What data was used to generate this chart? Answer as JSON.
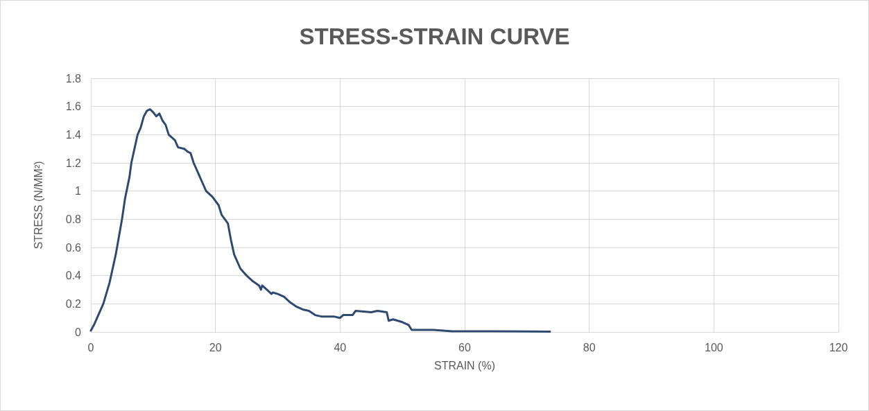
{
  "chart_data": {
    "type": "line",
    "title": "STRESS-STRAIN CURVE",
    "xlabel": "STRAIN (%)",
    "ylabel": "STRESS (N/MM²)",
    "x": [
      0,
      0.5,
      1,
      2,
      3,
      4,
      5,
      5.5,
      6.2,
      6.5,
      7,
      7.5,
      8,
      8.5,
      9,
      9.5,
      10,
      10.5,
      11,
      11.5,
      12,
      12.5,
      13,
      13.5,
      14,
      15,
      15.5,
      16,
      16.5,
      17,
      17.5,
      18,
      18.5,
      19.5,
      20.5,
      21,
      22,
      22.5,
      23,
      24,
      25,
      26,
      27,
      27.3,
      27.5,
      28,
      29,
      29.2,
      30,
      31,
      32,
      33,
      34,
      35,
      36,
      37,
      39,
      40,
      40.5,
      42,
      42.5,
      45,
      46,
      47.5,
      47.8,
      48.5,
      50,
      51,
      51.5,
      55,
      58,
      65,
      73.7
    ],
    "series": [
      {
        "color": "#2e4a70",
        "values": [
          0.01,
          0.05,
          0.1,
          0.2,
          0.35,
          0.55,
          0.8,
          0.95,
          1.1,
          1.2,
          1.3,
          1.4,
          1.45,
          1.53,
          1.57,
          1.58,
          1.56,
          1.53,
          1.55,
          1.5,
          1.47,
          1.4,
          1.38,
          1.36,
          1.31,
          1.3,
          1.28,
          1.27,
          1.2,
          1.15,
          1.1,
          1.05,
          1.0,
          0.96,
          0.9,
          0.83,
          0.77,
          0.65,
          0.55,
          0.45,
          0.4,
          0.36,
          0.33,
          0.3,
          0.33,
          0.31,
          0.27,
          0.28,
          0.27,
          0.25,
          0.21,
          0.18,
          0.16,
          0.15,
          0.12,
          0.11,
          0.11,
          0.1,
          0.12,
          0.12,
          0.15,
          0.14,
          0.15,
          0.14,
          0.08,
          0.09,
          0.07,
          0.05,
          0.015,
          0.015,
          0.005,
          0.005,
          0.003
        ]
      }
    ],
    "xlim": [
      0,
      120
    ],
    "xticks": [
      0,
      20,
      40,
      60,
      80,
      100,
      120
    ],
    "ylim": [
      0,
      1.8
    ],
    "yticks": [
      0,
      0.2,
      0.4,
      0.6,
      0.8,
      1,
      1.2,
      1.4,
      1.6,
      1.8
    ],
    "grid": true,
    "marker": "none",
    "line_style": "solid"
  }
}
